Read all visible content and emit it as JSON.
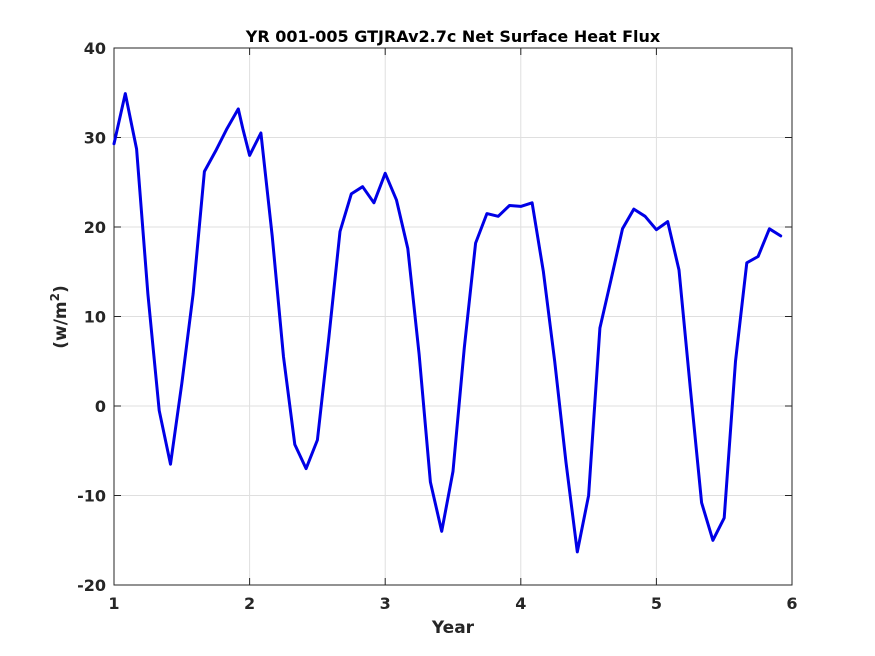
{
  "chart_data": {
    "type": "line",
    "title": "YR 001-005 GTJRAv2.7c Net Surface Heat Flux",
    "xlabel": "Year",
    "ylabel_prefix": "(w/m",
    "ylabel_sup": "2",
    "ylabel_suffix": ")",
    "xlim": [
      1,
      6
    ],
    "ylim": [
      -20,
      40
    ],
    "xticks": [
      1,
      2,
      3,
      4,
      5,
      6
    ],
    "yticks": [
      -20,
      -10,
      0,
      10,
      20,
      30,
      40
    ],
    "grid": true,
    "series": [
      {
        "color": "#0000e6",
        "x": [
          1.0,
          1.083,
          1.167,
          1.25,
          1.333,
          1.417,
          1.5,
          1.583,
          1.667,
          1.75,
          1.833,
          1.917,
          1.95,
          2.0,
          2.083,
          2.167,
          2.25,
          2.333,
          2.417,
          2.5,
          2.583,
          2.667,
          2.75,
          2.833,
          2.917,
          3.0,
          3.083,
          3.167,
          3.25,
          3.333,
          3.417,
          3.5,
          3.583,
          3.667,
          3.75,
          3.833,
          3.917,
          4.0,
          4.083,
          4.167,
          4.25,
          4.333,
          4.417,
          4.5,
          4.583,
          4.667,
          4.75,
          4.833,
          4.917,
          5.0,
          5.083,
          5.167,
          5.25,
          5.333,
          5.417,
          5.5,
          5.583,
          5.667,
          5.75,
          5.833,
          5.917
        ],
        "y": [
          29.3,
          34.9,
          28.7,
          12.5,
          -0.5,
          -6.5,
          2.5,
          12.5,
          26.2,
          28.5,
          31.0,
          33.2,
          31.0,
          28.0,
          30.5,
          19.0,
          5.5,
          -4.3,
          -7.0,
          -3.8,
          7.5,
          19.5,
          23.7,
          24.5,
          22.7,
          26.0,
          23.0,
          17.6,
          5.8,
          -8.5,
          -14.0,
          -7.3,
          6.5,
          18.2,
          21.5,
          21.2,
          22.4,
          22.3,
          22.7,
          15.0,
          5.0,
          -6.3,
          -16.3,
          -10.0,
          8.7,
          14.2,
          19.8,
          22.0,
          21.2,
          19.7,
          20.6,
          15.2,
          2.0,
          -10.8,
          -15.0,
          -12.5,
          5.0,
          16.0,
          16.7,
          19.8,
          19.0
        ]
      }
    ]
  }
}
